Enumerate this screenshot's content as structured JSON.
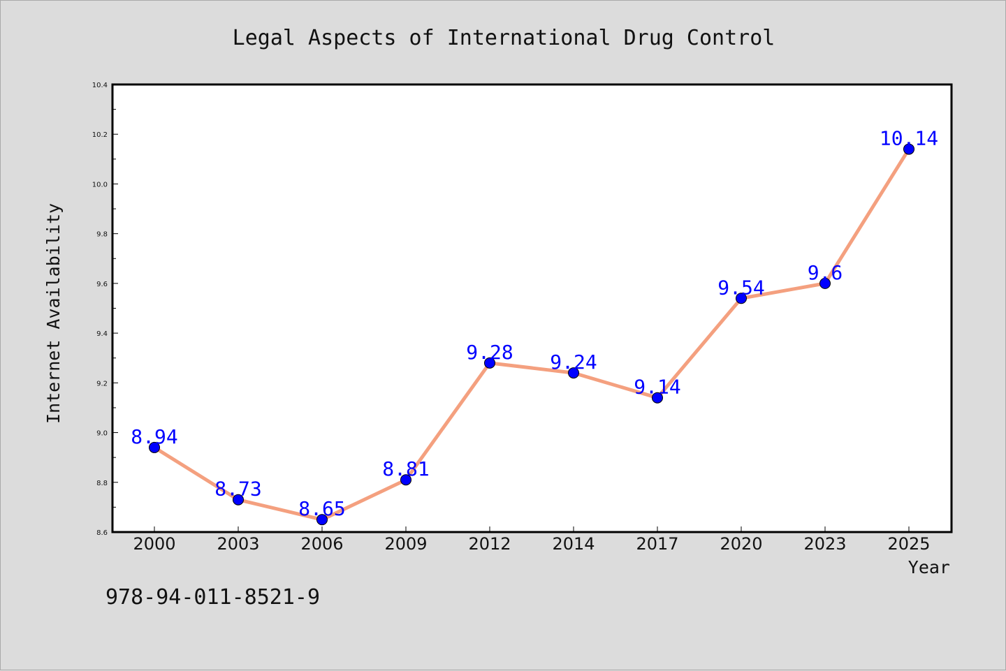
{
  "chart_data": {
    "type": "line",
    "title": "Legal Aspects of International Drug Control",
    "xlabel": "Year",
    "ylabel": "Internet Availability",
    "categories": [
      "2000",
      "2003",
      "2006",
      "2009",
      "2012",
      "2014",
      "2017",
      "2020",
      "2023",
      "2025"
    ],
    "series": [
      {
        "values": [
          8.94,
          8.73,
          8.65,
          8.81,
          9.28,
          9.24,
          9.14,
          9.54,
          9.6,
          10.14
        ],
        "data_labels": [
          "8.94",
          "8.73",
          "8.65",
          "8.81",
          "9.28",
          "9.24",
          "9.14",
          "9.54",
          "9.6",
          "10.14"
        ],
        "line_color": "#f4a07f",
        "marker_color": "#0000ff"
      }
    ],
    "ylim": [
      8.6,
      10.4
    ],
    "yticks": [
      "8.6",
      "8.8",
      "9.0",
      "9.2",
      "9.4",
      "9.6",
      "9.8",
      "10.0",
      "10.2",
      "10.4"
    ],
    "grid": false,
    "legend": "none"
  },
  "footer_text": "978-94-011-8521-9",
  "colors": {
    "background": "#dcdcdc",
    "plot_area": "#ffffff",
    "line": "#f4a07f",
    "marker": "#0000ff",
    "label": "#0000ff"
  }
}
